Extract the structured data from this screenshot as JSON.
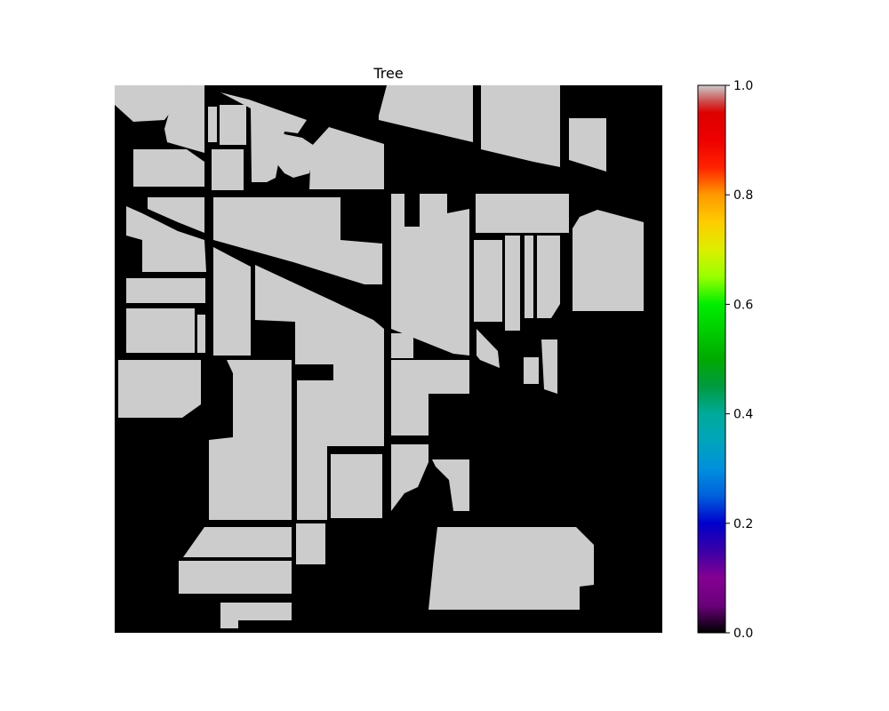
{
  "chart_data": {
    "type": "heatmap",
    "title": "Tree",
    "xlabel": "",
    "ylabel": "",
    "axes_visible": false,
    "colormap": "nipy_spectral",
    "value_range": [
      0,
      1
    ],
    "mask_value": 0.8,
    "mask_color": "#cccccc",
    "background_value": 0.0,
    "background_color": "#000000",
    "colorbar": {
      "position": "right",
      "ticks": [
        "0.0",
        "0.2",
        "0.4",
        "0.6",
        "0.8",
        "1.0"
      ],
      "tick_values": [
        0.0,
        0.2,
        0.4,
        0.6,
        0.8,
        1.0
      ]
    }
  }
}
